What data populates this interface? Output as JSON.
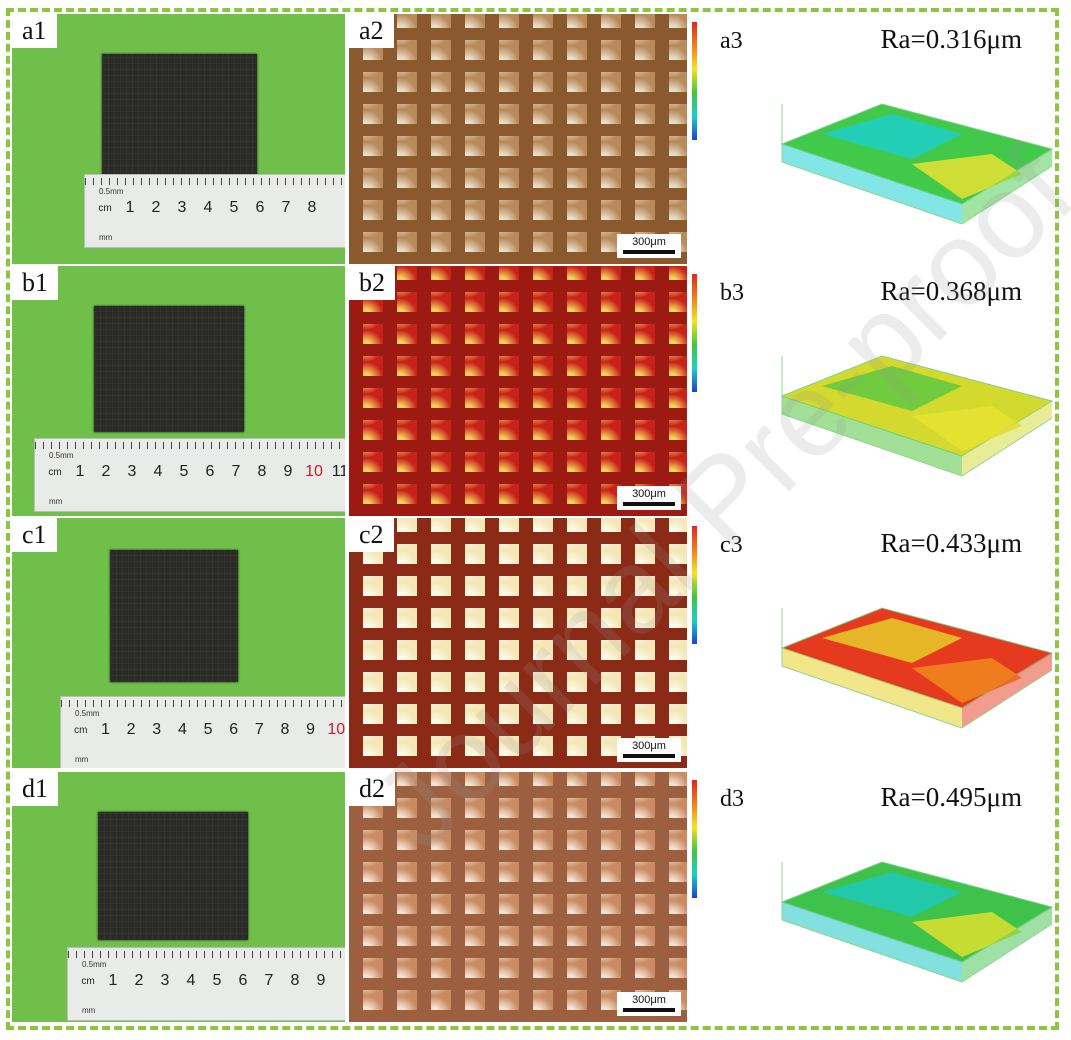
{
  "panels": [
    {
      "id": "a",
      "photo_label": "a1",
      "micro_label": "a2",
      "surface_label": "a3",
      "ra": "Ra=0.316μm",
      "scale": "300μm",
      "ruler_numbers": [
        "1",
        "2",
        "3",
        "4",
        "5",
        "6",
        "7",
        "8"
      ],
      "ruler_unit": "cm",
      "ruler_small": "0.5mm",
      "ruler_mm": "mm",
      "micro_palette": {
        "base": "#b98a5a",
        "stripe": "#8a5a2e",
        "light": "#e9dcc8"
      },
      "surface_palette": {
        "top": "#43c94a",
        "mid": "#1ccfd2",
        "accent": "#e6e232"
      }
    },
    {
      "id": "b",
      "photo_label": "b1",
      "micro_label": "b2",
      "surface_label": "b3",
      "ra": "Ra=0.368μm",
      "scale": "300μm",
      "ruler_numbers": [
        "1",
        "2",
        "3",
        "4",
        "5",
        "6",
        "7",
        "8",
        "9",
        "10",
        "11"
      ],
      "ruler_unit": "cm",
      "ruler_small": "0.5mm",
      "ruler_mm": "mm",
      "micro_palette": {
        "base": "#c8231b",
        "stripe": "#9d1a12",
        "light": "#f6d25a"
      },
      "surface_palette": {
        "top": "#d4d92e",
        "mid": "#58c742",
        "accent": "#e6e232"
      }
    },
    {
      "id": "c",
      "photo_label": "c1",
      "micro_label": "c2",
      "surface_label": "c3",
      "ra": "Ra=0.433μm",
      "scale": "300μm",
      "ruler_numbers": [
        "1",
        "2",
        "3",
        "4",
        "5",
        "6",
        "7",
        "8",
        "9",
        "10"
      ],
      "ruler_unit": "cm",
      "ruler_small": "0.5mm",
      "ruler_mm": "mm",
      "micro_palette": {
        "base": "#f3e7b8",
        "stripe": "#8c2a18",
        "light": "#fffbe8"
      },
      "surface_palette": {
        "top": "#e63a1e",
        "mid": "#e6d42a",
        "accent": "#f08a1e"
      }
    },
    {
      "id": "d",
      "photo_label": "d1",
      "micro_label": "d2",
      "surface_label": "d3",
      "ra": "Ra=0.495μm",
      "scale": "300μm",
      "ruler_numbers": [
        "1",
        "2",
        "3",
        "4",
        "5",
        "6",
        "7",
        "8",
        "9"
      ],
      "ruler_unit": "cm",
      "ruler_small": "0.5mm",
      "ruler_mm": "mm",
      "micro_palette": {
        "base": "#c98b62",
        "stripe": "#9c6040",
        "light": "#f3e3d2"
      },
      "surface_palette": {
        "top": "#3fc24a",
        "mid": "#1cc9c2",
        "accent": "#dfe02e"
      }
    }
  ],
  "watermark": "Journal Pre-proof"
}
